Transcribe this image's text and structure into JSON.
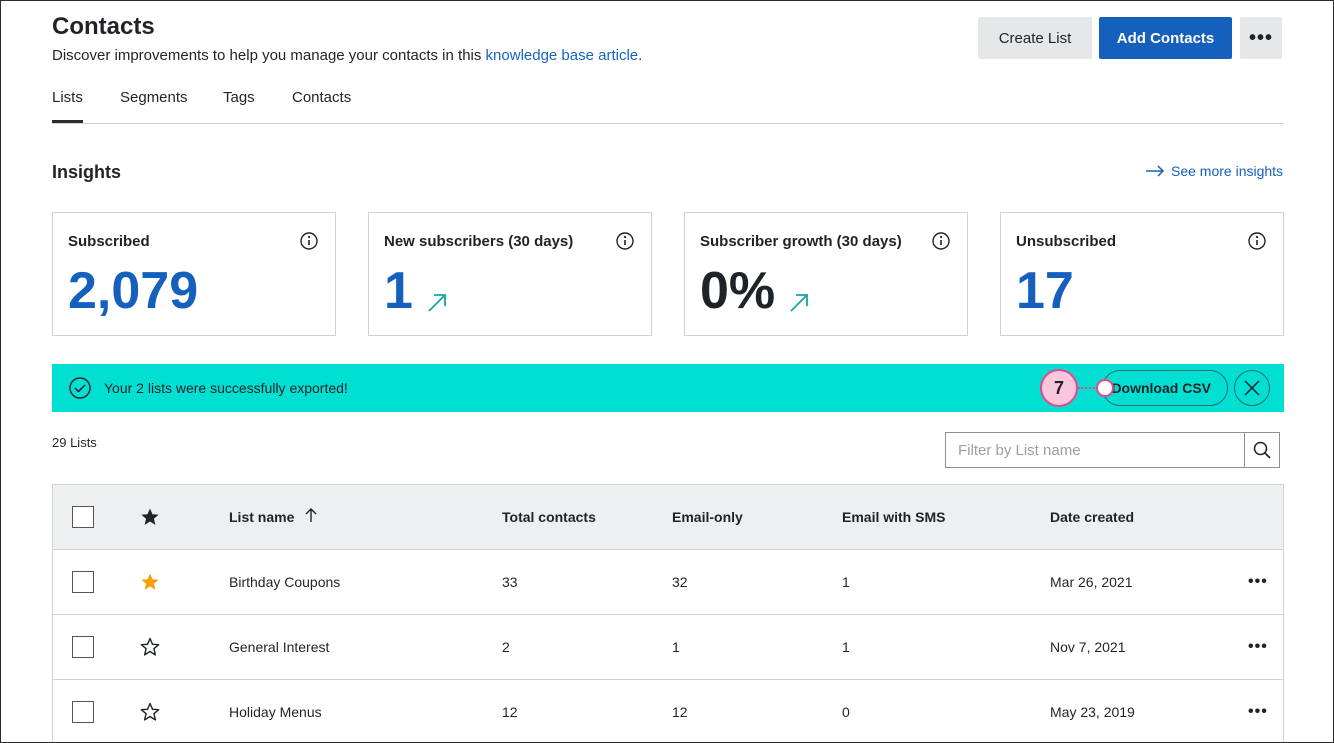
{
  "header": {
    "title": "Contacts",
    "subtitle_prefix": "Discover improvements to help you manage your contacts in this ",
    "subtitle_link": "knowledge base article",
    "subtitle_suffix": ".",
    "create_list_label": "Create List",
    "add_contacts_label": "Add Contacts",
    "more_label": "•••"
  },
  "tabs": [
    {
      "label": "Lists",
      "active": true
    },
    {
      "label": "Segments",
      "active": false
    },
    {
      "label": "Tags",
      "active": false
    },
    {
      "label": "Contacts",
      "active": false
    }
  ],
  "insights": {
    "title": "Insights",
    "see_more": "See more insights",
    "cards": [
      {
        "label": "Subscribed",
        "value": "2,079",
        "trend": false
      },
      {
        "label": "New subscribers (30 days)",
        "value": "1",
        "trend": true
      },
      {
        "label": "Subscriber growth (30 days)",
        "value": "0%",
        "trend": true
      },
      {
        "label": "Unsubscribed",
        "value": "17",
        "trend": false
      }
    ]
  },
  "banner": {
    "message": "Your 2 lists were successfully exported!",
    "download_label": "Download CSV",
    "step_number": "7",
    "color": "#00dfd2"
  },
  "lists": {
    "count_label": "29 Lists",
    "filter_placeholder": "Filter by List name",
    "columns": [
      "List name",
      "Total contacts",
      "Email-only",
      "Email with SMS",
      "Date created"
    ],
    "rows": [
      {
        "name": "Birthday Coupons",
        "total": "33",
        "email_only": "32",
        "email_sms": "1",
        "date": "Mar 26, 2021",
        "starred": true
      },
      {
        "name": "General Interest",
        "total": "2",
        "email_only": "1",
        "email_sms": "1",
        "date": "Nov 7, 2021",
        "starred": false
      },
      {
        "name": "Holiday Menus",
        "total": "12",
        "email_only": "12",
        "email_sms": "0",
        "date": "May 23, 2019",
        "starred": false
      }
    ],
    "row_more_label": "•••"
  },
  "colors": {
    "brand_blue": "#1560bd",
    "teal_trend": "#13a89e",
    "star_gold": "#f5a00b",
    "annotation_pink": "#e8478b"
  }
}
